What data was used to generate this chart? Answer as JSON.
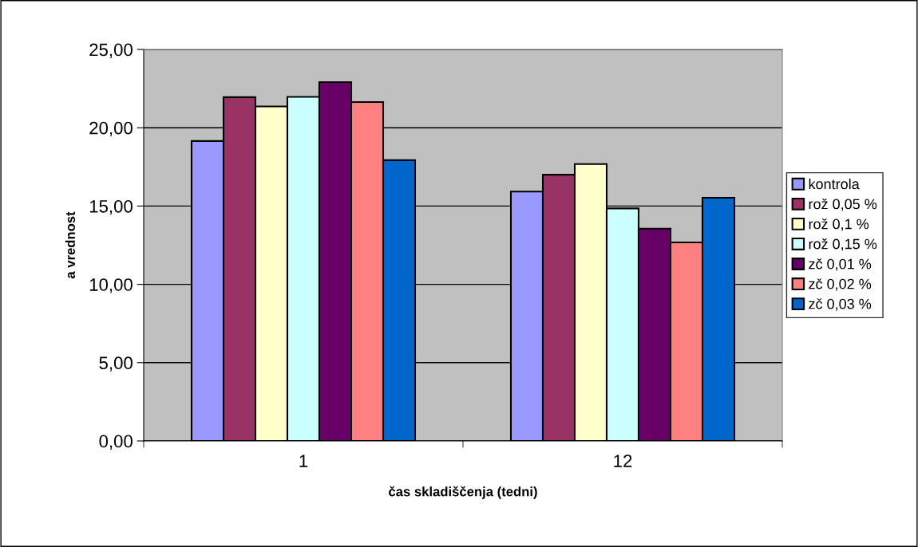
{
  "chart_data": {
    "type": "bar",
    "xlabel": "čas skladiščenja (tedni)",
    "ylabel": "a vrednost",
    "categories": [
      "1",
      "12"
    ],
    "series": [
      {
        "name": "kontrola",
        "color": "#9999ff",
        "values": [
          19.15,
          15.92
        ]
      },
      {
        "name": "rož 0,05 %",
        "color": "#993366",
        "values": [
          21.95,
          17.0
        ]
      },
      {
        "name": "rož 0,1 %",
        "color": "#ffffcc",
        "values": [
          21.36,
          17.68
        ]
      },
      {
        "name": "rož 0,15 %",
        "color": "#ccffff",
        "values": [
          21.97,
          14.85
        ]
      },
      {
        "name": "zč 0,01 %",
        "color": "#660066",
        "values": [
          22.91,
          13.56
        ]
      },
      {
        "name": "zč 0,02 %",
        "color": "#ff8080",
        "values": [
          21.64,
          12.68
        ]
      },
      {
        "name": "zč 0,03 %",
        "color": "#0066cc",
        "values": [
          17.93,
          15.53
        ]
      }
    ],
    "ylim": [
      0,
      25
    ],
    "yticks": [
      {
        "value": 0,
        "label": "0,00"
      },
      {
        "value": 5,
        "label": "5,00"
      },
      {
        "value": 10,
        "label": "10,00"
      },
      {
        "value": 15,
        "label": "15,00"
      },
      {
        "value": 20,
        "label": "20,00"
      },
      {
        "value": 25,
        "label": "25,00"
      }
    ],
    "grid": "y",
    "legend": "right"
  }
}
